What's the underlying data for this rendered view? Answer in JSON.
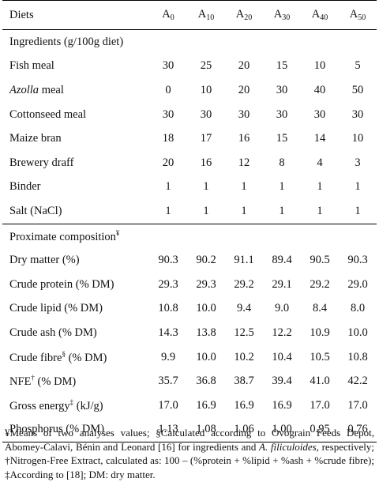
{
  "header": {
    "col0": "Diets",
    "diets": [
      {
        "base": "A",
        "sub": "0"
      },
      {
        "base": "A",
        "sub": "10"
      },
      {
        "base": "A",
        "sub": "20"
      },
      {
        "base": "A",
        "sub": "30"
      },
      {
        "base": "A",
        "sub": "40"
      },
      {
        "base": "A",
        "sub": "50"
      }
    ]
  },
  "ingredients": {
    "section_label": "Ingredients (g/100g diet)",
    "rows": [
      {
        "label": "Fish meal",
        "values": [
          "30",
          "25",
          "20",
          "15",
          "10",
          "5"
        ]
      },
      {
        "label": "Azolla",
        "label_suffix": " meal",
        "values": [
          "0",
          "10",
          "20",
          "30",
          "40",
          "50"
        ]
      },
      {
        "label": "Cottonseed meal",
        "values": [
          "30",
          "30",
          "30",
          "30",
          "30",
          "30"
        ]
      },
      {
        "label": "Maize bran",
        "values": [
          "18",
          "17",
          "16",
          "15",
          "14",
          "10"
        ]
      },
      {
        "label": "Brewery draff",
        "values": [
          "20",
          "16",
          "12",
          "8",
          "4",
          "3"
        ]
      },
      {
        "label": "Binder",
        "values": [
          "1",
          "1",
          "1",
          "1",
          "1",
          "1"
        ]
      },
      {
        "label": "Salt (NaCl)",
        "values": [
          "1",
          "1",
          "1",
          "1",
          "1",
          "1"
        ]
      }
    ]
  },
  "proximate": {
    "section_label": "Proximate composition",
    "section_mark": "¥",
    "rows": [
      {
        "label": "Dry matter (%)",
        "values": [
          "90.3",
          "90.2",
          "91.1",
          "89.4",
          "90.5",
          "90.3"
        ]
      },
      {
        "label": "Crude protein (% DM)",
        "values": [
          "29.3",
          "29.3",
          "29.2",
          "29.1",
          "29.2",
          "29.0"
        ]
      },
      {
        "label": "Crude lipid (% DM)",
        "values": [
          "10.8",
          "10.0",
          "9.4",
          "9.0",
          "8.4",
          "8.0"
        ]
      },
      {
        "label": "Crude ash (% DM)",
        "values": [
          "14.3",
          "13.8",
          "12.5",
          "12.2",
          "10.9",
          "10.0"
        ]
      },
      {
        "label": "Crude fibre",
        "mark": "§",
        "label_after": " (% DM)",
        "values": [
          "9.9",
          "10.0",
          "10.2",
          "10.4",
          "10.5",
          "10.8"
        ]
      },
      {
        "label": "NFE",
        "mark": "†",
        "label_after": " (% DM)",
        "values": [
          "35.7",
          "36.8",
          "38.7",
          "39.4",
          "41.0",
          "42.2"
        ]
      },
      {
        "label": "Gross energy",
        "mark": "‡",
        "label_after": " (kJ/g)",
        "values": [
          "17.0",
          "16.9",
          "16.9",
          "16.9",
          "17.0",
          "17.0"
        ]
      },
      {
        "label": "Phosphorus (% DM)",
        "values": [
          "1.13",
          "1.08",
          "1.06",
          "1.00",
          "0.95",
          "0.76"
        ]
      }
    ]
  },
  "footnote": {
    "part1": "¥Means of two analyses values; §Calculated according to Ovograin Feeds Depot, Abomey-Calavi, Bénin and Leonard [16] for ingredients and ",
    "species": "A. filiculoides",
    "part2": ", respectively; †Nitrogen-Free Extract, calculated as: 100 – (%protein + %lipid + %ash + %crude fibre); ‡According to [18]; DM: dry matter."
  }
}
